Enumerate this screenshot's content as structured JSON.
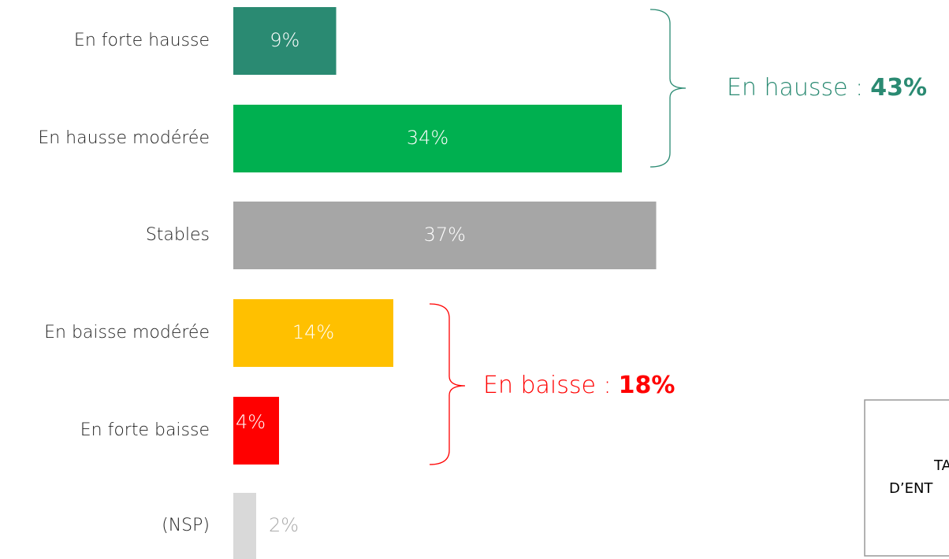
{
  "chart_data": {
    "type": "bar",
    "orientation": "horizontal",
    "categories": [
      "En forte hausse",
      "En hausse modérée",
      "Stables",
      "En baisse modérée",
      "En forte baisse",
      "(NSP)"
    ],
    "values": [
      9,
      34,
      37,
      14,
      4,
      2
    ],
    "value_labels": [
      "9%",
      "34%",
      "37%",
      "14%",
      "4%",
      "2%"
    ],
    "colors": [
      "#2a8a72",
      "#00b050",
      "#a6a6a6",
      "#ffc000",
      "#ff0000",
      "#d9d9d9"
    ],
    "annotations": [
      {
        "text": "En hausse :",
        "value": 43,
        "value_label": "43%",
        "color": "#2a8a72"
      },
      {
        "text": "En baisse :",
        "value": 18,
        "value_label": "18%",
        "color": "#ff0000"
      }
    ]
  },
  "side_box": {
    "lines": [
      "TA",
      "D’ENT"
    ]
  }
}
